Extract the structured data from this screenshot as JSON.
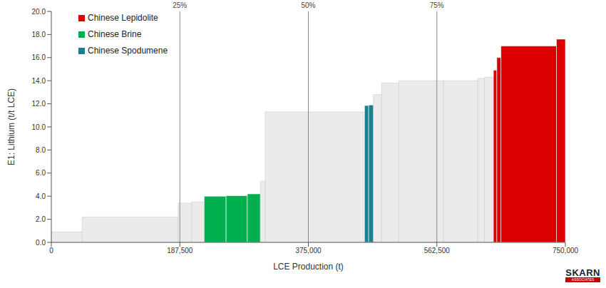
{
  "chart_data": {
    "type": "bar",
    "x_label": "LCE Production (t)",
    "y_label": "E1: Lithium (t/t LCE)",
    "widths": [
      45000,
      140000,
      20000,
      18000,
      32000,
      31000,
      19000,
      7000,
      145000,
      6000,
      7000,
      12000,
      25000,
      65000,
      50000,
      10000,
      13000,
      5000,
      6000,
      81000,
      13000
    ],
    "values": [
      0.9,
      2.2,
      3.4,
      3.5,
      4.0,
      4.05,
      4.2,
      5.3,
      11.3,
      11.85,
      11.9,
      12.8,
      13.8,
      14.0,
      14.0,
      14.2,
      14.3,
      14.9,
      16.0,
      17.0,
      17.6
    ],
    "groups": [
      null,
      null,
      null,
      null,
      "Chinese Brine",
      "Chinese Brine",
      "Chinese Brine",
      null,
      null,
      "Chinese Spodumene",
      "Chinese Spodumene",
      null,
      null,
      null,
      null,
      null,
      null,
      "Chinese Lepidolite",
      "Chinese Lepidolite",
      "Chinese Lepidolite",
      "Chinese Lepidolite"
    ],
    "color": "#ebebeb",
    "series": [
      {
        "name": "Chinese Lepidolite",
        "color": "#dd0000"
      },
      {
        "name": "Chinese Brine",
        "color": "#00b04f"
      },
      {
        "name": "Chinese Spodumene",
        "color": "#1a7f8e"
      }
    ],
    "xlim": [
      0,
      750000
    ],
    "xticks": [
      {
        "value": 0,
        "label": "0"
      },
      {
        "value": 187500,
        "label": "187,500"
      },
      {
        "value": 375000,
        "label": "375,000"
      },
      {
        "value": 562500,
        "label": "562,500"
      },
      {
        "value": 750000,
        "label": "750,000"
      }
    ],
    "ylim": [
      0,
      20
    ],
    "yticks": [
      {
        "value": 0,
        "label": "0.0"
      },
      {
        "value": 2,
        "label": "2.0"
      },
      {
        "value": 4,
        "label": "4.0"
      },
      {
        "value": 6,
        "label": "6.0"
      },
      {
        "value": 8,
        "label": "8.0"
      },
      {
        "value": 10,
        "label": "10.0"
      },
      {
        "value": 12,
        "label": "12.0"
      },
      {
        "value": 14,
        "label": "14.0"
      },
      {
        "value": 16,
        "label": "16.0"
      },
      {
        "value": 18,
        "label": "18.0"
      },
      {
        "value": 20,
        "label": "20.0"
      }
    ],
    "reference_lines": [
      {
        "value": 187500,
        "label": "25%"
      },
      {
        "value": 375000,
        "label": "50%"
      },
      {
        "value": 562500,
        "label": "75%"
      }
    ],
    "logo": [
      "SKARN",
      "ASSOCIATES"
    ],
    "legend": "top-left",
    "grid": false
  }
}
